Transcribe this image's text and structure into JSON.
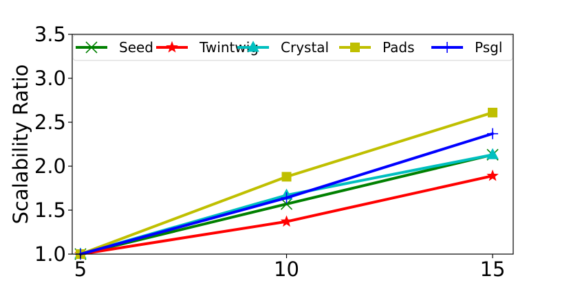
{
  "chart_data": {
    "type": "line",
    "title": "",
    "xlabel": "",
    "ylabel": "Scalability Ratio",
    "x": [
      5,
      10,
      15
    ],
    "xticks": [
      "5",
      "10",
      "15"
    ],
    "xlim": [
      4.8,
      15.5
    ],
    "ylim": [
      1.0,
      3.5
    ],
    "yticks": [
      "1.0",
      "1.5",
      "2.0",
      "2.5",
      "3.0",
      "3.5"
    ],
    "grid": false,
    "legend_position": "top",
    "series": [
      {
        "name": "Seed",
        "color": "#008000",
        "marker": "x",
        "values": [
          1.0,
          1.57,
          2.13
        ]
      },
      {
        "name": "Twintwig",
        "color": "#ff0000",
        "marker": "star",
        "values": [
          1.0,
          1.37,
          1.89
        ]
      },
      {
        "name": "Crystal",
        "color": "#00bfbf",
        "marker": "triangle",
        "values": [
          1.0,
          1.67,
          2.13
        ]
      },
      {
        "name": "Pads",
        "color": "#bfbf00",
        "marker": "square",
        "values": [
          1.0,
          1.88,
          2.61
        ]
      },
      {
        "name": "Psgl",
        "color": "#0000ff",
        "marker": "plus",
        "values": [
          1.0,
          1.64,
          2.37
        ]
      }
    ]
  }
}
